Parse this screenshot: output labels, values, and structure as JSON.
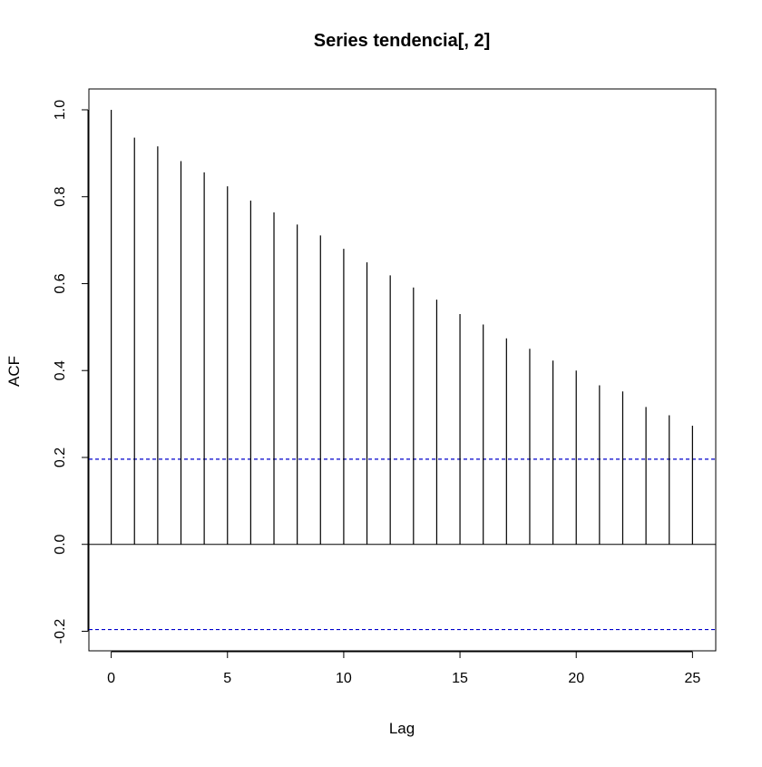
{
  "chart_data": {
    "type": "bar",
    "title": "Series  tendencia[, 2]",
    "xlabel": "Lag",
    "ylabel": "ACF",
    "x": [
      0,
      1,
      2,
      3,
      4,
      5,
      6,
      7,
      8,
      9,
      10,
      11,
      12,
      13,
      14,
      15,
      16,
      17,
      18,
      19,
      20,
      21,
      22,
      23,
      24,
      25
    ],
    "values": [
      1.0,
      0.936,
      0.916,
      0.882,
      0.856,
      0.824,
      0.791,
      0.764,
      0.736,
      0.711,
      0.68,
      0.649,
      0.619,
      0.591,
      0.563,
      0.53,
      0.506,
      0.474,
      0.45,
      0.423,
      0.4,
      0.366,
      0.352,
      0.316,
      0.297,
      0.273
    ],
    "xlim": [
      -0.96,
      26
    ],
    "ylim": [
      -0.245,
      1.048
    ],
    "xticks": [
      0,
      5,
      10,
      15,
      20,
      25
    ],
    "xtick_labels": [
      "0",
      "5",
      "10",
      "15",
      "20",
      "25"
    ],
    "yticks": [
      -0.2,
      0.0,
      0.2,
      0.4,
      0.6,
      0.8,
      1.0
    ],
    "ytick_labels": [
      "-0.2",
      "0.0",
      "0.2",
      "0.4",
      "0.6",
      "0.8",
      "1.0"
    ],
    "confidence_bound": 0.196,
    "confidence_line_color": "#0000cc",
    "bar_color": "#000000",
    "grid": false
  }
}
